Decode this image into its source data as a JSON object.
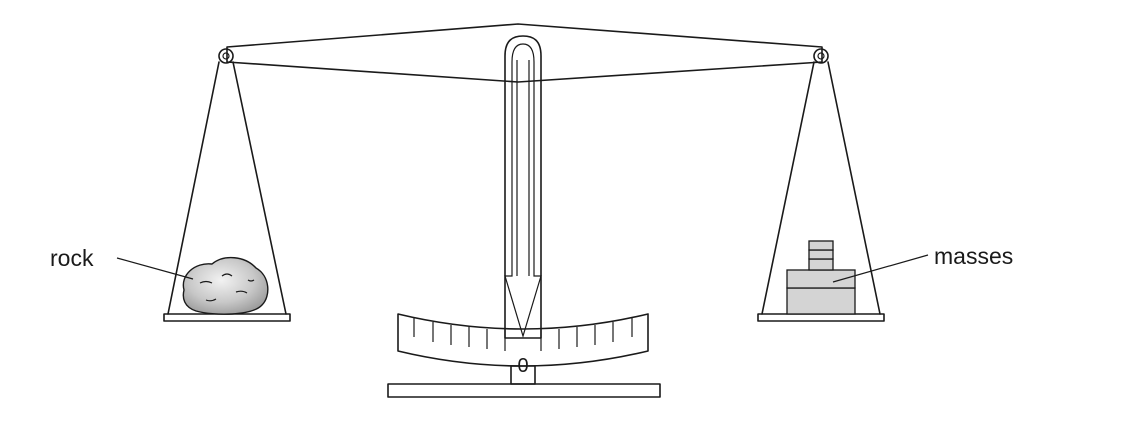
{
  "labels": {
    "rock": "rock",
    "masses": "masses",
    "scale_zero": "0"
  },
  "colors": {
    "line": "#1a1a1a",
    "rock_fill": "#cfcfcf",
    "masses_fill": "#d4d4d4"
  }
}
